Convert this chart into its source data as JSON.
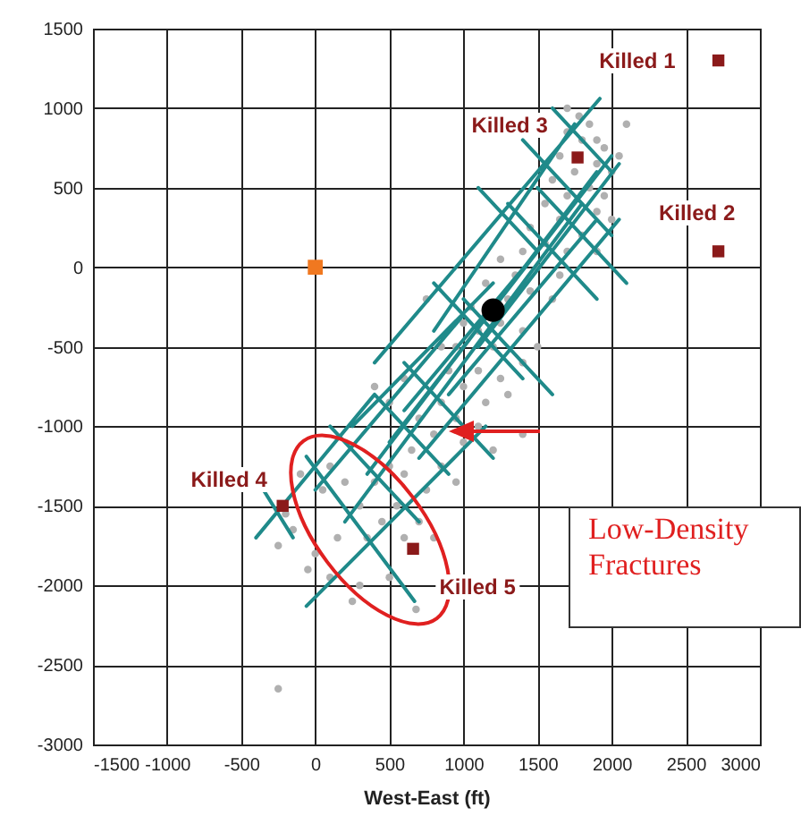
{
  "chart_data": {
    "type": "scatter",
    "xlabel": "West-East (ft)",
    "xlim": [
      -1500,
      3000
    ],
    "xticks": [
      -1500,
      -1000,
      -500,
      0,
      500,
      1000,
      1500,
      2000,
      2500,
      3000
    ],
    "ylim": [
      -3000,
      1500
    ],
    "yticks": [
      -3000,
      -2500,
      -2000,
      -1500,
      -1000,
      -500,
      0,
      500,
      1000,
      1500
    ],
    "grid": true,
    "annotations": [
      "Low-Density Fractures"
    ],
    "series": [
      {
        "color": "#b0b0b0",
        "marker": "circle",
        "x": [
          1700,
          1780,
          1850,
          1900,
          1950,
          2050,
          2000,
          1900,
          1800,
          1700,
          1650,
          1750,
          1850,
          1950,
          2000,
          1900,
          1700,
          1600,
          1550,
          1650,
          1800,
          1900,
          1700,
          1550,
          1450,
          1400,
          1500,
          1650,
          1600,
          1450,
          1350,
          1300,
          1250,
          1400,
          1500,
          1200,
          1100,
          1050,
          1000,
          950,
          1100,
          1250,
          1400,
          1300,
          1150,
          1000,
          900,
          850,
          950,
          1100,
          1400,
          1200,
          1000,
          800,
          700,
          650,
          850,
          950,
          750,
          600,
          500,
          400,
          550,
          700,
          800,
          600,
          450,
          300,
          200,
          100,
          350,
          150,
          0,
          100,
          300,
          500,
          680,
          250,
          -50,
          -150,
          -250,
          -200,
          -100,
          50,
          850,
          750,
          600,
          -250,
          1250,
          1150,
          2100,
          400,
          500
        ],
        "values": [
          1000,
          950,
          900,
          800,
          750,
          700,
          600,
          650,
          800,
          850,
          700,
          600,
          500,
          450,
          300,
          350,
          450,
          550,
          400,
          300,
          200,
          100,
          100,
          150,
          250,
          100,
          0,
          -50,
          -200,
          -150,
          -50,
          -200,
          -350,
          -400,
          -500,
          -500,
          -400,
          -250,
          -350,
          -500,
          -650,
          -700,
          -600,
          -800,
          -850,
          -750,
          -650,
          -850,
          -950,
          -1000,
          -1050,
          -1150,
          -1100,
          -1050,
          -950,
          -1150,
          -1250,
          -1350,
          -1400,
          -1300,
          -1250,
          -1350,
          -1500,
          -1600,
          -1700,
          -1700,
          -1600,
          -1500,
          -1350,
          -1250,
          -1700,
          -1700,
          -1800,
          -1950,
          -2000,
          -1950,
          -2150,
          -2100,
          -1900,
          -1650,
          -1750,
          -1550,
          -1300,
          -1400,
          -500,
          -200,
          -700,
          -2650,
          50,
          -100,
          900,
          -750,
          -850
        ]
      },
      {
        "type": "line",
        "color": "#1f8a8a",
        "line_style": "solid",
        "x": [
          -400,
          400,
          null,
          -60,
          1150,
          null,
          200,
          1800,
          null,
          350,
          1900,
          null,
          500,
          2000,
          null,
          700,
          2050,
          null,
          400,
          1920,
          null,
          800,
          1750,
          null,
          1100,
          2050,
          null,
          600,
          1500,
          null,
          900,
          1900,
          null,
          0,
          1000,
          null,
          250,
          1200,
          null,
          -60,
          670,
          null,
          -350,
          -150,
          null,
          100,
          500,
          null,
          800,
          1400,
          null,
          1400,
          2000,
          null,
          1600,
          2000,
          null,
          1300,
          1900,
          null,
          1500,
          2100,
          null,
          1000,
          1600,
          null,
          600,
          1200,
          null,
          200,
          700,
          null,
          1100,
          1500,
          null,
          400,
          900
        ],
        "values": [
          -1700,
          -800,
          null,
          -2130,
          -1000,
          null,
          -1600,
          400,
          null,
          -1300,
          600,
          null,
          -1100,
          700,
          null,
          -1200,
          300,
          null,
          -600,
          1060,
          null,
          -400,
          900,
          null,
          -500,
          650,
          null,
          -900,
          100,
          null,
          -800,
          300,
          null,
          -1400,
          -300,
          null,
          -1000,
          -100,
          null,
          -1190,
          -2100,
          null,
          -1400,
          -1700,
          null,
          -1000,
          -1400,
          null,
          -100,
          -700,
          null,
          800,
          200,
          null,
          1000,
          600,
          null,
          400,
          -200,
          null,
          500,
          -100,
          null,
          -200,
          -800,
          null,
          -600,
          -1200,
          null,
          -1100,
          -1600,
          null,
          500,
          100,
          null,
          -800,
          -1300
        ]
      },
      {
        "color": "#8b1a1a",
        "marker": "square",
        "x": [
          2720,
          2720,
          1770,
          -220,
          660
        ],
        "values": [
          1300,
          100,
          690,
          -1500,
          -1770
        ],
        "value_labels": [
          "Killed 1",
          "Killed 2",
          "Killed 3",
          "Killed 4",
          "Killed 5"
        ]
      },
      {
        "color": "#f07820",
        "marker": "square",
        "x": [
          0
        ],
        "values": [
          0
        ]
      },
      {
        "color": "#000000",
        "marker": "circle",
        "x": [
          1200
        ],
        "values": [
          -270
        ]
      }
    ]
  }
}
